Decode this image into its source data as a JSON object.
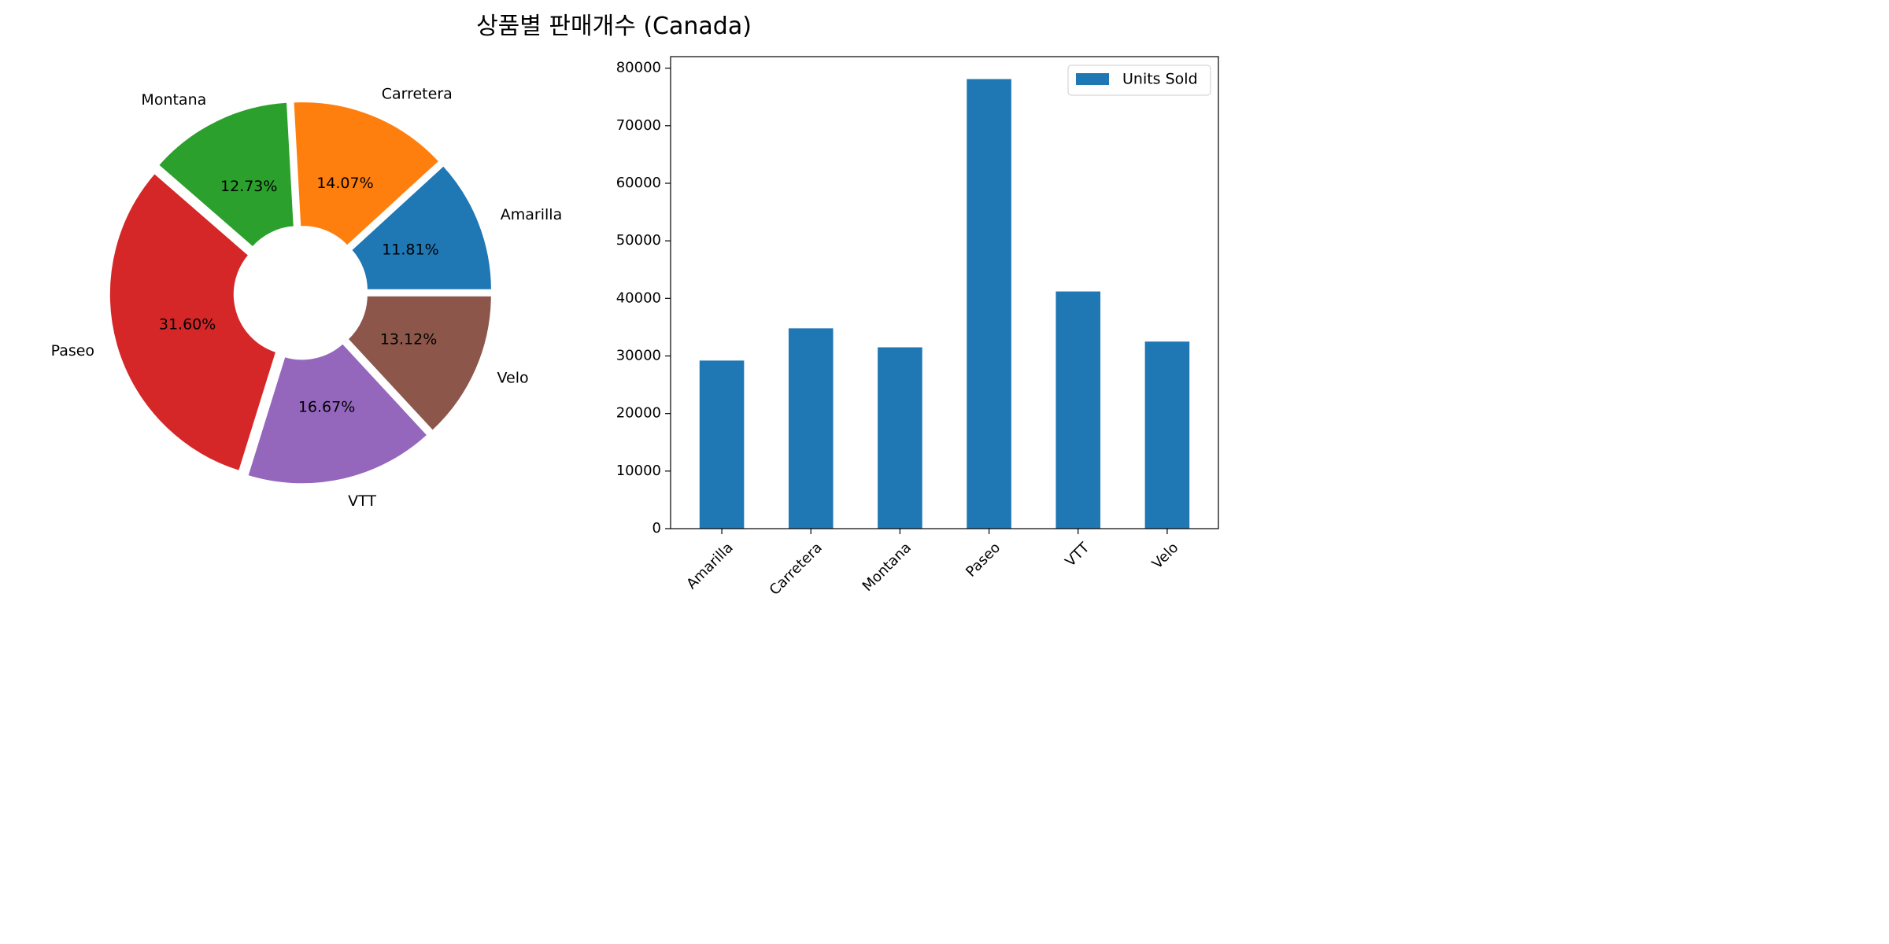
{
  "figure": {
    "title": "상품별 판매개수 (Canada)"
  },
  "chart_data": [
    {
      "type": "pie",
      "style": "donut",
      "categories": [
        "Amarilla",
        "Carretera",
        "Montana",
        "Paseo",
        "VTT",
        "Velo"
      ],
      "values": [
        11.81,
        14.07,
        12.73,
        31.6,
        16.67,
        13.12
      ],
      "value_labels": [
        "11.81%",
        "14.07%",
        "12.73%",
        "31.60%",
        "16.67%",
        "13.12%"
      ],
      "colors": [
        "#1f77b4",
        "#ff7f0e",
        "#2ca02c",
        "#d62728",
        "#9467bd",
        "#8c564b"
      ]
    },
    {
      "type": "bar",
      "categories": [
        "Amarilla",
        "Carretera",
        "Montana",
        "Paseo",
        "VTT",
        "Velo"
      ],
      "series": [
        {
          "name": "Units Sold",
          "values": [
            29200,
            34800,
            31500,
            78100,
            41200,
            32500
          ],
          "color": "#1f77b4"
        }
      ],
      "ylim": [
        0,
        82000
      ],
      "yticks": [
        0,
        10000,
        20000,
        30000,
        40000,
        50000,
        60000,
        70000,
        80000
      ],
      "legend": "top-right"
    }
  ]
}
